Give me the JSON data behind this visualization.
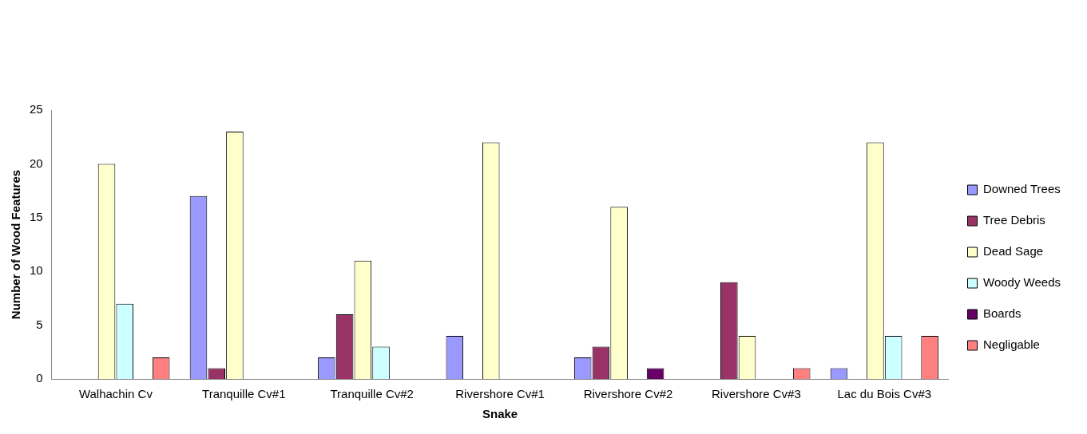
{
  "chart_data": {
    "type": "bar",
    "xlabel": "Snake",
    "ylabel": "Number of Wood Features",
    "categories": [
      "Walhachin Cv",
      "Tranquille Cv#1",
      "Tranquille Cv#2",
      "Rivershore Cv#1",
      "Rivershore Cv#2",
      "Rivershore Cv#3",
      "Lac du Bois Cv#3"
    ],
    "series": [
      {
        "name": "Downed Trees",
        "color": "#9999ff",
        "values": [
          null,
          17,
          2,
          4,
          2,
          null,
          1
        ]
      },
      {
        "name": "Tree Debris",
        "color": "#993366",
        "values": [
          null,
          1,
          6,
          null,
          3,
          9,
          null
        ]
      },
      {
        "name": "Dead Sage",
        "color": "#ffffcc",
        "values": [
          20,
          23,
          11,
          22,
          16,
          4,
          22
        ]
      },
      {
        "name": "Woody Weeds",
        "color": "#ccffff",
        "values": [
          7,
          null,
          3,
          null,
          null,
          null,
          4
        ]
      },
      {
        "name": "Boards",
        "color": "#660066",
        "values": [
          null,
          null,
          null,
          null,
          1,
          null,
          null
        ]
      },
      {
        "name": "Negligable",
        "color": "#ff8080",
        "values": [
          2,
          null,
          null,
          null,
          null,
          1,
          4
        ]
      }
    ],
    "ylim": [
      0,
      25
    ],
    "yticks": [
      0,
      5,
      10,
      15,
      20,
      25
    ],
    "grid": false,
    "legend": "right"
  }
}
